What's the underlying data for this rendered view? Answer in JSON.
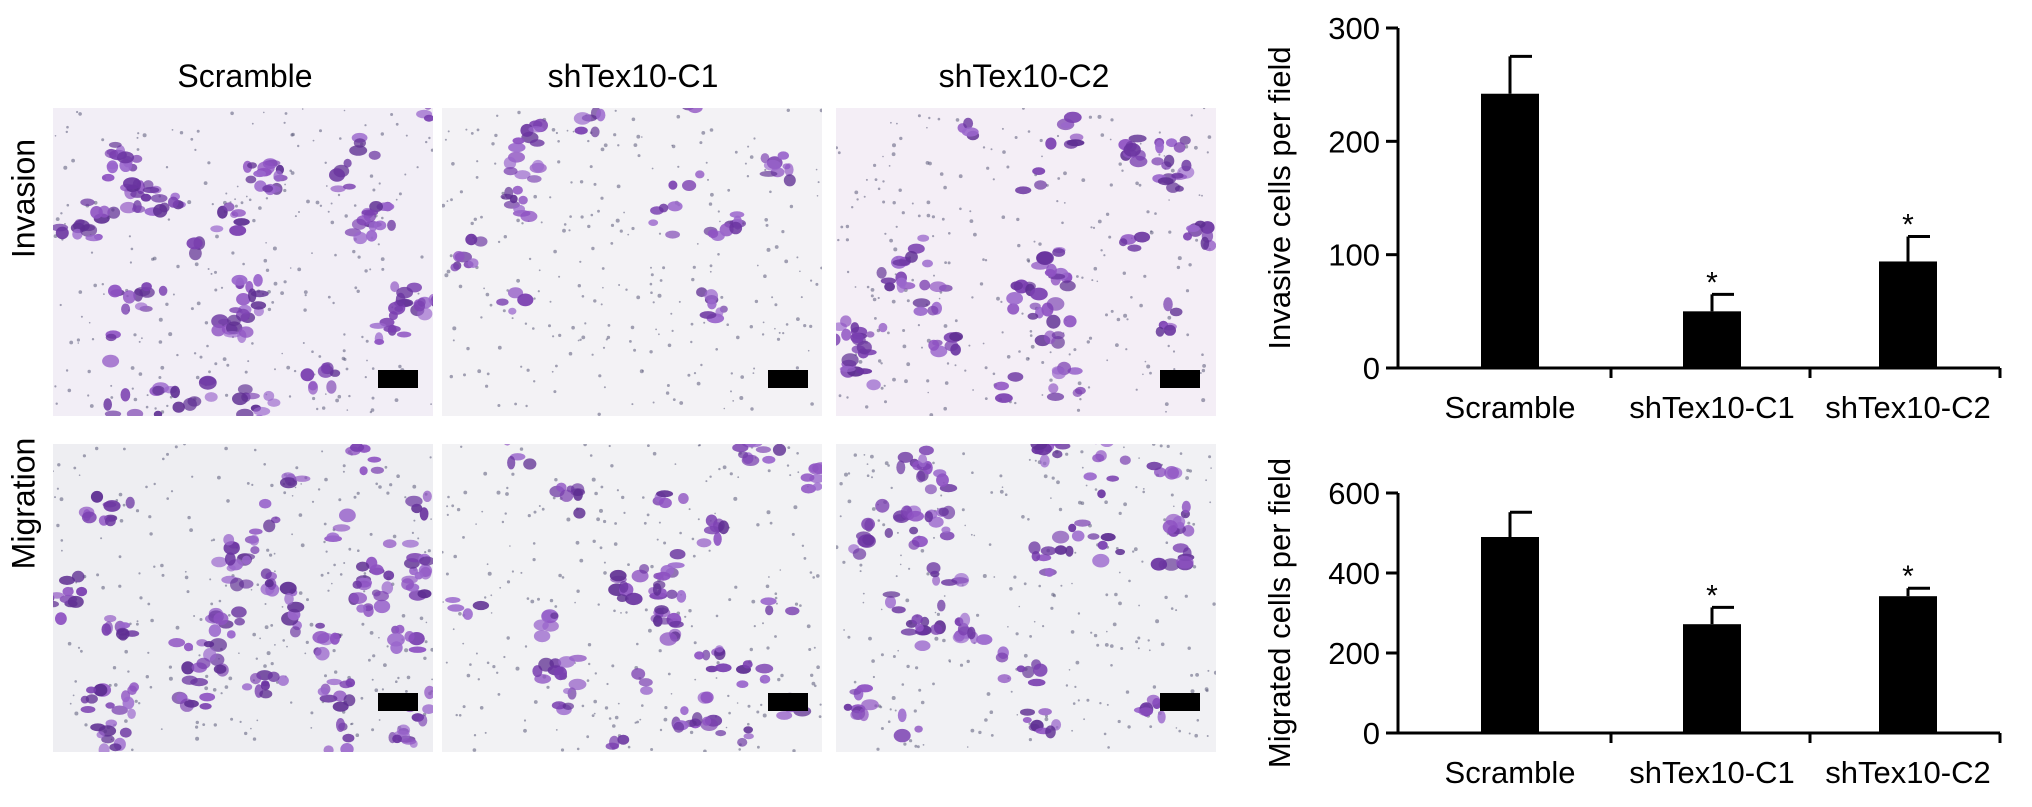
{
  "micrographs": {
    "columns": [
      "Scramble",
      "shTex10-C1",
      "shTex10-C2"
    ],
    "rows": [
      "Invasion",
      "Migration"
    ]
  },
  "chart_data": [
    {
      "type": "bar",
      "categories": [
        "Scramble",
        "shTex10-C1",
        "shTex10-C2"
      ],
      "values": [
        242,
        50,
        94
      ],
      "errors": [
        33,
        15,
        22
      ],
      "significance": [
        "",
        "*",
        "*"
      ],
      "title": "",
      "xlabel": "",
      "ylabel": "Invasive cells per field",
      "ylim": [
        0,
        300
      ],
      "yticks": [
        0,
        100,
        200,
        300
      ],
      "color": "#000000"
    },
    {
      "type": "bar",
      "categories": [
        "Scramble",
        "shTex10-C1",
        "shTex10-C2"
      ],
      "values": [
        490,
        272,
        342
      ],
      "errors": [
        62,
        42,
        20
      ],
      "significance": [
        "",
        "*",
        "*"
      ],
      "title": "",
      "xlabel": "",
      "ylabel": "Migrated cells per field",
      "ylim": [
        0,
        600
      ],
      "yticks": [
        0,
        200,
        400,
        600
      ],
      "color": "#000000"
    }
  ]
}
